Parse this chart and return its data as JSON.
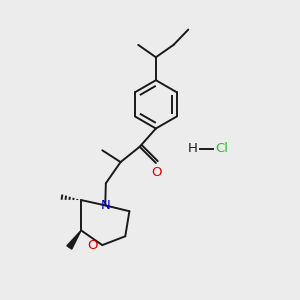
{
  "bg_color": "#ececec",
  "bond_color": "#1a1a1a",
  "atom_colors": {
    "O": "#e00000",
    "N": "#0000cc",
    "Cl": "#33bb33",
    "H": "#1a1a1a"
  },
  "line_width": 1.4,
  "figsize": [
    3.0,
    3.0
  ],
  "dpi": 100
}
